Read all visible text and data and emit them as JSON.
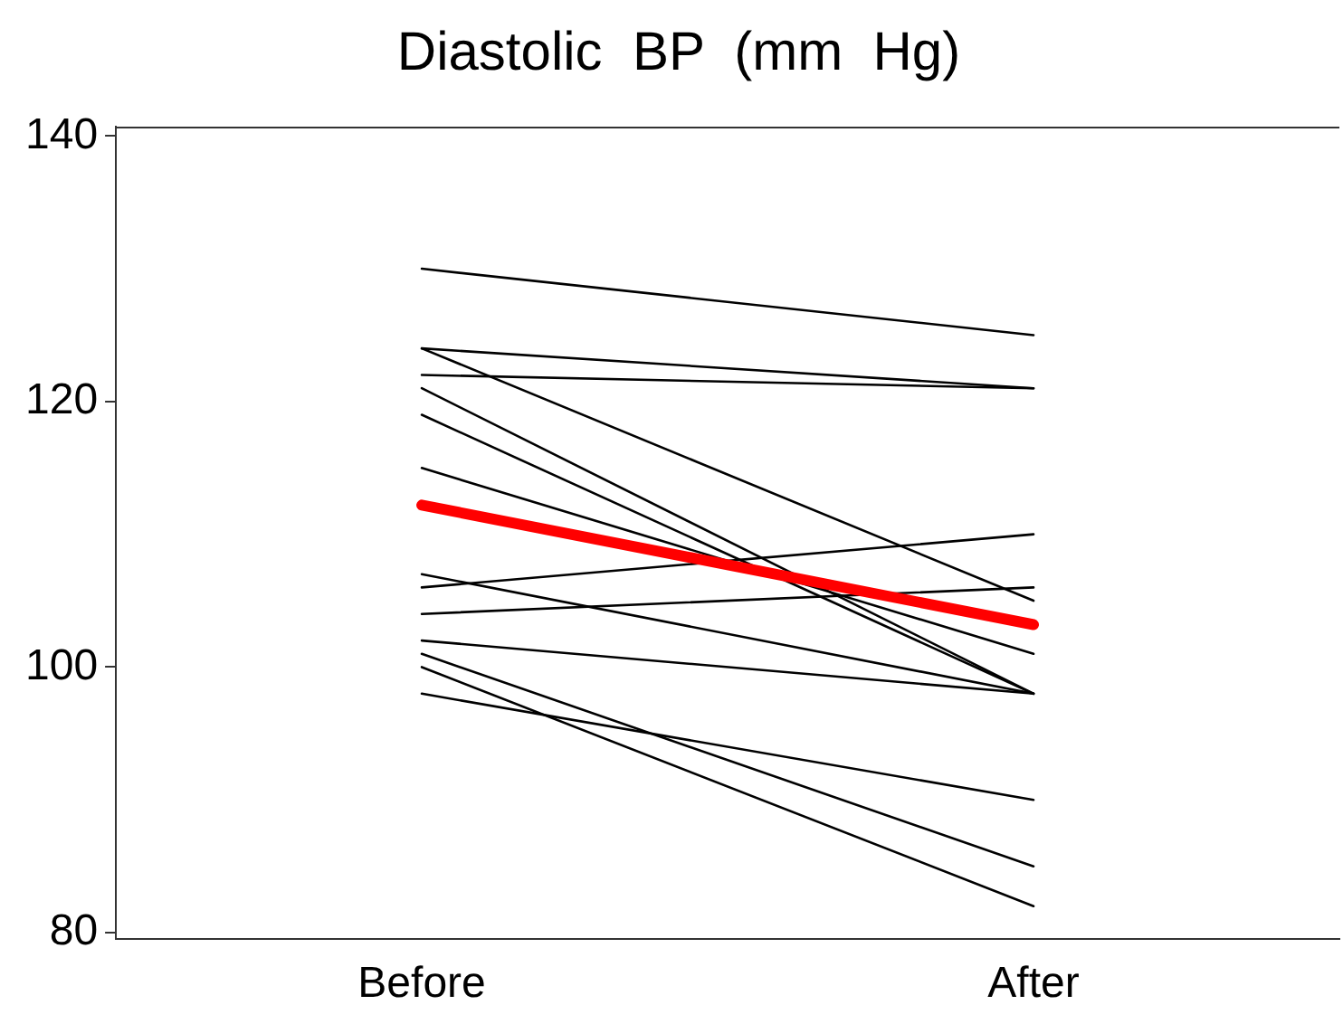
{
  "chart_data": {
    "type": "line",
    "title": "Diastolic  BP  (mm  Hg)",
    "categories": [
      "Before",
      "After"
    ],
    "ylim": [
      79.5,
      140.7
    ],
    "yticks": [
      80,
      100,
      120,
      140
    ],
    "grid": false,
    "legend": false,
    "marker": "none",
    "line_style": "solid",
    "series": [
      {
        "color": "#000000",
        "values": [
          130,
          125
        ]
      },
      {
        "color": "#000000",
        "values": [
          124,
          121
        ]
      },
      {
        "color": "#000000",
        "values": [
          124,
          105
        ]
      },
      {
        "color": "#000000",
        "values": [
          122,
          121
        ]
      },
      {
        "color": "#000000",
        "values": [
          121,
          98
        ]
      },
      {
        "color": "#000000",
        "values": [
          119,
          98
        ]
      },
      {
        "color": "#000000",
        "values": [
          115,
          101
        ]
      },
      {
        "color": "#000000",
        "values": [
          107,
          98
        ]
      },
      {
        "color": "#000000",
        "values": [
          106,
          110
        ]
      },
      {
        "color": "#000000",
        "values": [
          104,
          106
        ]
      },
      {
        "color": "#000000",
        "values": [
          102,
          98
        ]
      },
      {
        "color": "#000000",
        "values": [
          101,
          85
        ]
      },
      {
        "color": "#000000",
        "values": [
          100,
          82
        ]
      },
      {
        "color": "#000000",
        "values": [
          98,
          90
        ]
      },
      {
        "color": "#ff0000",
        "values": [
          112.2,
          103.2
        ]
      }
    ]
  }
}
